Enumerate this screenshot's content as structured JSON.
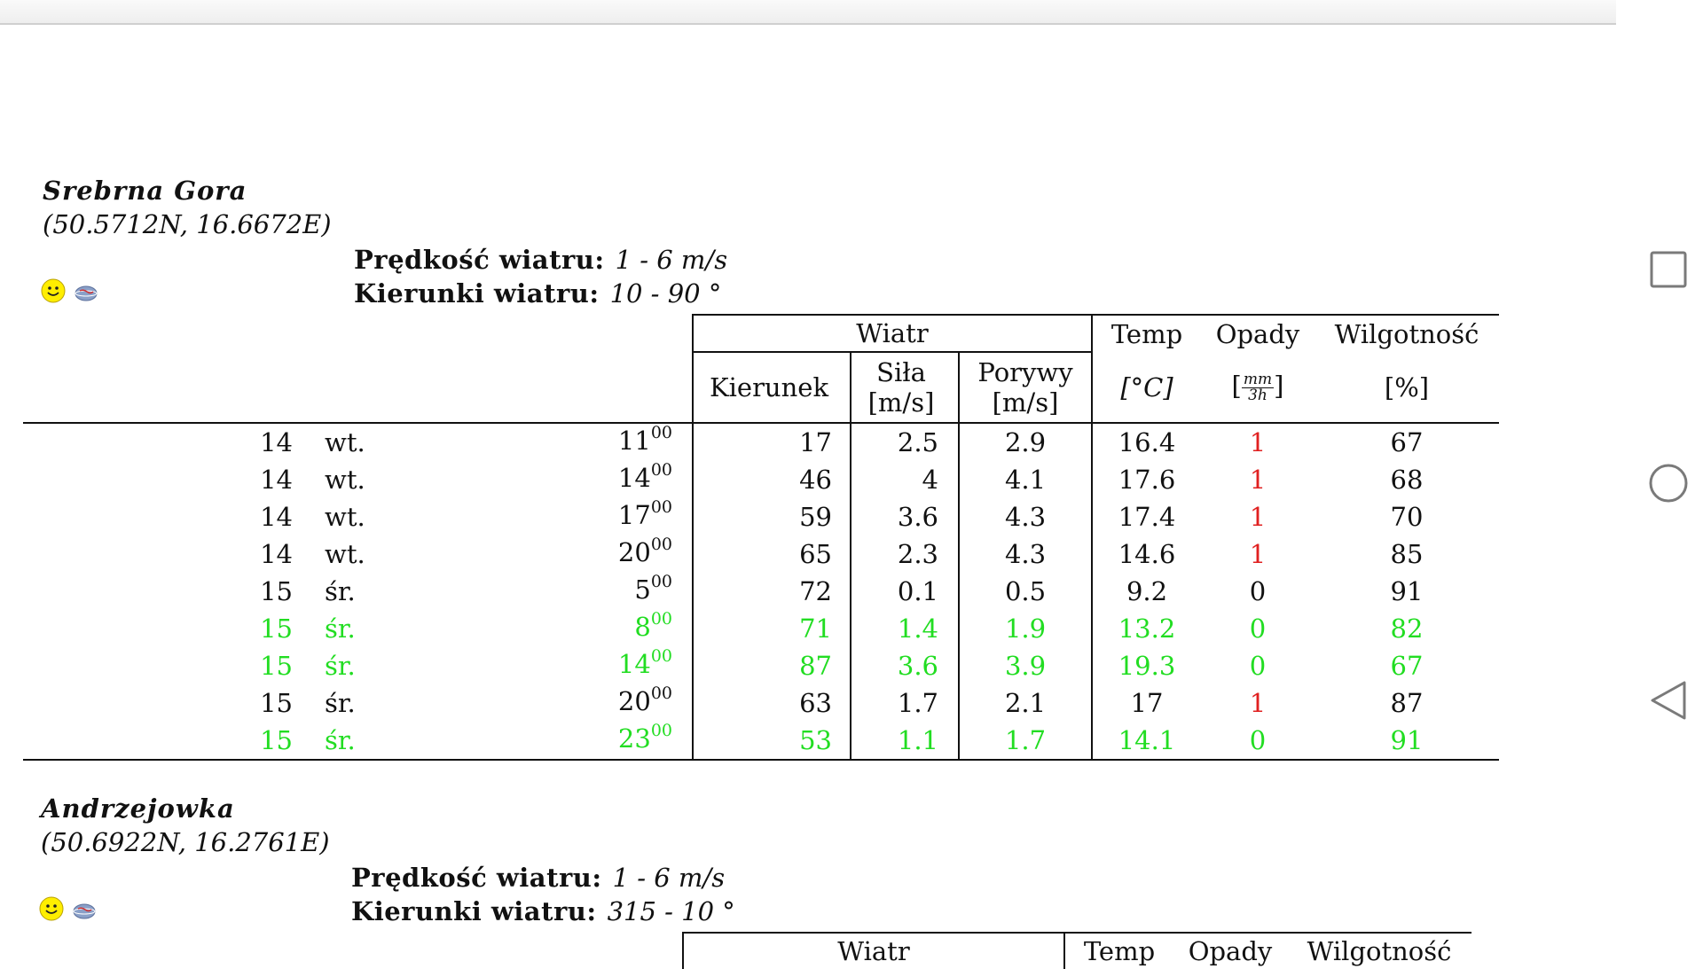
{
  "nav": {
    "recents": "recents-icon",
    "home": "home-icon",
    "back": "back-icon"
  },
  "labels": {
    "speed": "Prędkość wiatru:",
    "dirs": "Kierunki wiatru:"
  },
  "headers": {
    "wiatr": "Wiatr",
    "temp": "Temp",
    "opady": "Opady",
    "wilgotnosc": "Wilgotność",
    "kierunek": "Kierunek",
    "sila": "Siła",
    "porywy": "Porywy",
    "unit_ms": "[m/s]",
    "unit_temp": "[°C]",
    "unit_rain_num": "mm",
    "unit_rain_den": "3h",
    "unit_pct": "[%]"
  },
  "colors": {
    "highlight": "#22dd22",
    "rain": "#e02020"
  },
  "stations": [
    {
      "name": "Srebrna Gora",
      "coords": "(50.5712N, 16.6672E)",
      "speed": "1 - 6 m/s",
      "dirs": "10 - 90 °",
      "rows": [
        {
          "day": "14",
          "dow": "wt.",
          "hour": "11",
          "min": "00",
          "kier": "17",
          "sila": "2.5",
          "por": "2.9",
          "temp": "16.4",
          "opady": "1",
          "wil": "67",
          "hl": false
        },
        {
          "day": "14",
          "dow": "wt.",
          "hour": "14",
          "min": "00",
          "kier": "46",
          "sila": "4",
          "por": "4.1",
          "temp": "17.6",
          "opady": "1",
          "wil": "68",
          "hl": false
        },
        {
          "day": "14",
          "dow": "wt.",
          "hour": "17",
          "min": "00",
          "kier": "59",
          "sila": "3.6",
          "por": "4.3",
          "temp": "17.4",
          "opady": "1",
          "wil": "70",
          "hl": false
        },
        {
          "day": "14",
          "dow": "wt.",
          "hour": "20",
          "min": "00",
          "kier": "65",
          "sila": "2.3",
          "por": "4.3",
          "temp": "14.6",
          "opady": "1",
          "wil": "85",
          "hl": false
        },
        {
          "day": "15",
          "dow": "śr.",
          "hour": "5",
          "min": "00",
          "kier": "72",
          "sila": "0.1",
          "por": "0.5",
          "temp": "9.2",
          "opady": "0",
          "wil": "91",
          "hl": false
        },
        {
          "day": "15",
          "dow": "śr.",
          "hour": "8",
          "min": "00",
          "kier": "71",
          "sila": "1.4",
          "por": "1.9",
          "temp": "13.2",
          "opady": "0",
          "wil": "82",
          "hl": true
        },
        {
          "day": "15",
          "dow": "śr.",
          "hour": "14",
          "min": "00",
          "kier": "87",
          "sila": "3.6",
          "por": "3.9",
          "temp": "19.3",
          "opady": "0",
          "wil": "67",
          "hl": true
        },
        {
          "day": "15",
          "dow": "śr.",
          "hour": "20",
          "min": "00",
          "kier": "63",
          "sila": "1.7",
          "por": "2.1",
          "temp": "17",
          "opady": "1",
          "wil": "87",
          "hl": false
        },
        {
          "day": "15",
          "dow": "śr.",
          "hour": "23",
          "min": "00",
          "kier": "53",
          "sila": "1.1",
          "por": "1.7",
          "temp": "14.1",
          "opady": "0",
          "wil": "91",
          "hl": true
        }
      ]
    },
    {
      "name": "Andrzejowka",
      "coords": "(50.6922N, 16.2761E)",
      "speed": "1 - 6 m/s",
      "dirs": "315 - 10 °",
      "rows": []
    }
  ]
}
